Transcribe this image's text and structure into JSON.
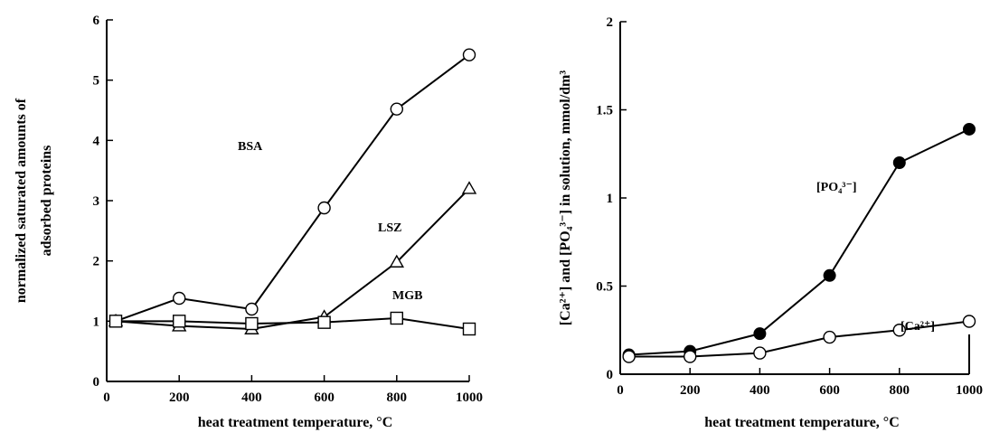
{
  "chart_data": [
    {
      "type": "line",
      "xlabel": "heat treatment temperature, °C",
      "ylabel_lines": [
        "normalized saturated amounts of",
        "adsorbed proteins"
      ],
      "xlim": [
        0,
        1000
      ],
      "ylim": [
        0,
        6
      ],
      "xticks": [
        "0",
        "200",
        "400",
        "600",
        "800",
        "1000"
      ],
      "yticks": [
        "0",
        "1",
        "2",
        "3",
        "4",
        "5",
        "6"
      ],
      "grid": false,
      "series": [
        {
          "name": "BSA",
          "marker": "circle",
          "x": [
            25,
            200,
            400,
            600,
            800,
            1000
          ],
          "y": [
            1.0,
            1.38,
            1.2,
            2.88,
            4.52,
            5.42
          ]
        },
        {
          "name": "LSZ",
          "marker": "triangle",
          "x": [
            25,
            200,
            400,
            600,
            800,
            1000
          ],
          "y": [
            1.0,
            0.92,
            0.87,
            1.07,
            1.98,
            3.2
          ]
        },
        {
          "name": "MGB",
          "marker": "square",
          "x": [
            25,
            200,
            400,
            600,
            800,
            1000
          ],
          "y": [
            1.0,
            1.0,
            0.96,
            0.98,
            1.05,
            0.87
          ]
        }
      ]
    },
    {
      "type": "line",
      "xlabel": "heat treatment temperature, °C",
      "ylabel": "[Ca²⁺] and [PO₄³⁻]  in  solution, mmol/dm³",
      "xlim": [
        0,
        1000
      ],
      "ylim": [
        0,
        2
      ],
      "xticks": [
        "0",
        "200",
        "400",
        "600",
        "800",
        "1000"
      ],
      "yticks": [
        "0",
        "0.5",
        "1",
        "1.5",
        "2"
      ],
      "grid": false,
      "series": [
        {
          "name": "[PO₄³⁻]",
          "marker": "filled-circle",
          "x": [
            25,
            200,
            400,
            600,
            800,
            1000
          ],
          "y": [
            0.11,
            0.13,
            0.23,
            0.56,
            1.2,
            1.39
          ]
        },
        {
          "name": "[Ca²⁺]",
          "marker": "open-circle",
          "x": [
            25,
            200,
            400,
            600,
            800,
            1000
          ],
          "y": [
            0.1,
            0.1,
            0.12,
            0.21,
            0.25,
            0.3
          ]
        }
      ]
    }
  ]
}
